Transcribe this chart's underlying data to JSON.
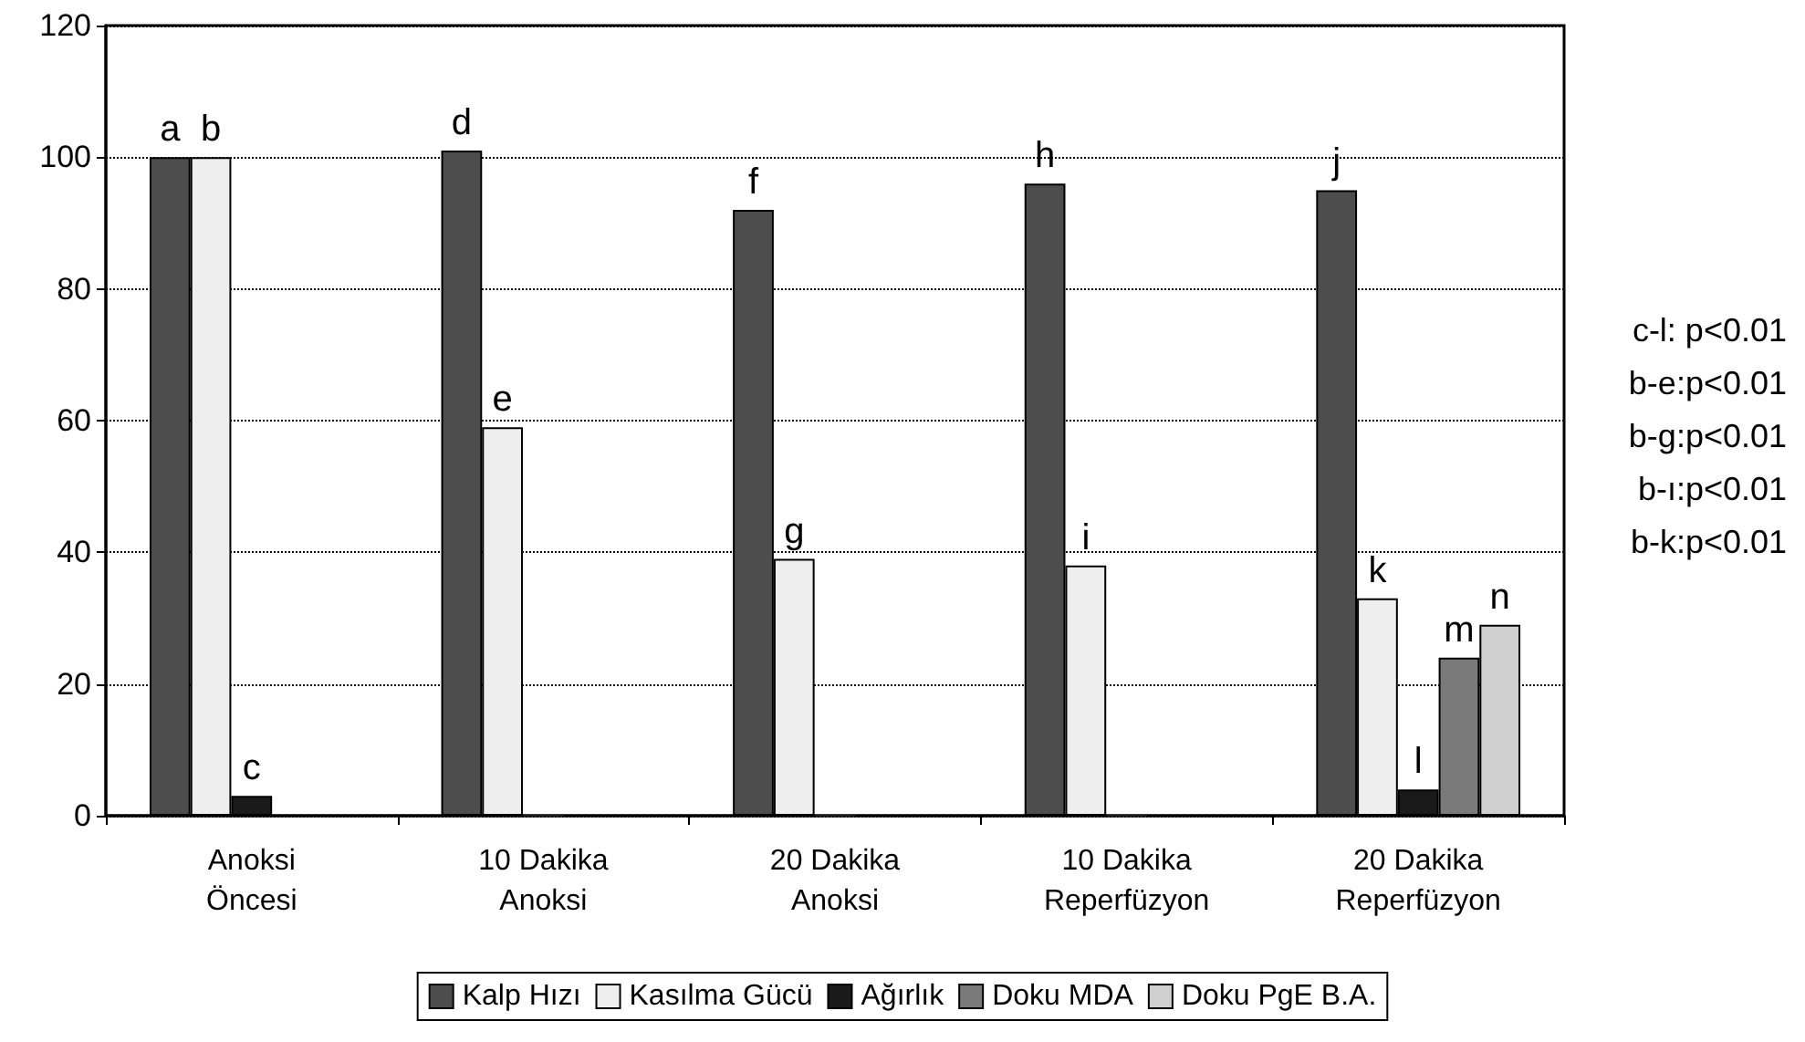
{
  "chart_data": {
    "type": "bar",
    "categories": [
      "Anoksi\nÖncesi",
      "10 Dakika\nAnoksi",
      "20 Dakika\nAnoksi",
      "10 Dakika\nReperfüzyon",
      "20 Dakika\nReperfüzyon"
    ],
    "series": [
      {
        "name": "Kalp Hızı",
        "color": "#4d4d4d",
        "values": [
          100,
          101,
          92,
          96,
          95
        ],
        "value_labels": [
          "a",
          "d",
          "f",
          "h",
          "j"
        ]
      },
      {
        "name": "Kasılma Gücü",
        "color": "#eeeeee",
        "values": [
          100,
          59,
          39,
          38,
          33
        ],
        "value_labels": [
          "b",
          "e",
          "g",
          "i",
          "k"
        ]
      },
      {
        "name": "Ağırlık",
        "color": "#1a1a1a",
        "values": [
          3,
          0,
          0,
          0,
          4
        ],
        "value_labels": [
          "c",
          null,
          null,
          null,
          "l"
        ]
      },
      {
        "name": "Doku MDA",
        "color": "#7a7a7a",
        "values": [
          null,
          null,
          null,
          null,
          24
        ],
        "value_labels": [
          null,
          null,
          null,
          null,
          "m"
        ]
      },
      {
        "name": "Doku PgE B.A.",
        "color": "#cfcfcf",
        "values": [
          null,
          null,
          null,
          null,
          29
        ],
        "value_labels": [
          null,
          null,
          null,
          null,
          "n"
        ]
      }
    ],
    "ylim": [
      0,
      120
    ],
    "yticks": [
      0,
      20,
      40,
      60,
      80,
      100,
      120
    ],
    "grid": "y",
    "legend": "bottom",
    "annotations": [
      "c-l: p<0.01",
      "b-e:p<0.01",
      "b-g:p<0.01",
      "b-ı:p<0.01",
      "b-k:p<0.01"
    ]
  }
}
